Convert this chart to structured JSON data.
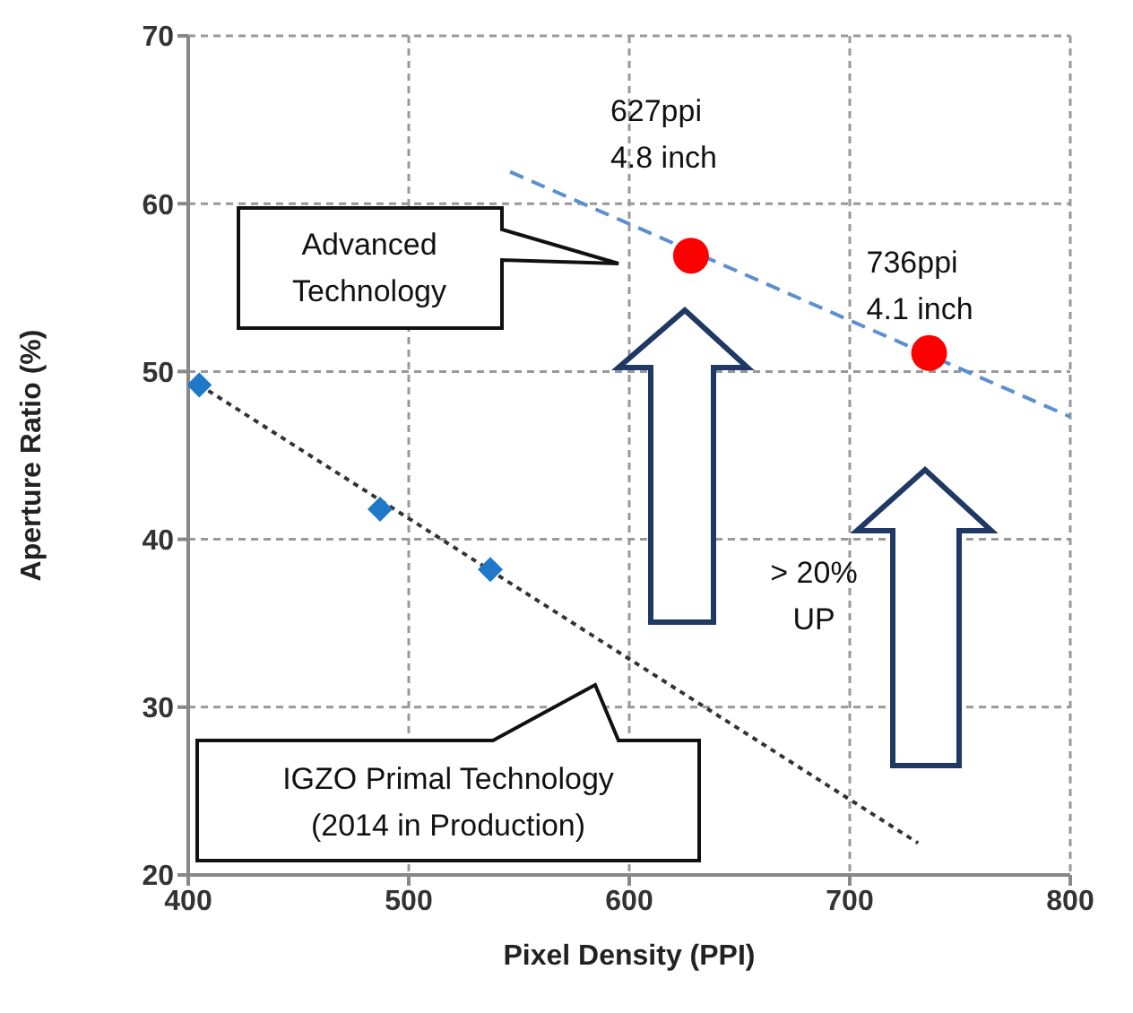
{
  "chart_data": {
    "type": "scatter",
    "xlabel": "Pixel Density (PPI)",
    "ylabel": "Aperture Ratio (%)",
    "xlim": [
      400,
      800
    ],
    "xticks": [
      400,
      500,
      600,
      700,
      800
    ],
    "ylim": [
      20,
      70
    ],
    "yticks": [
      20,
      30,
      40,
      50,
      60,
      70
    ],
    "grid": true,
    "series": [
      {
        "marker": "diamond",
        "color": "#1f78c8",
        "x": [
          405,
          487,
          537
        ],
        "values": [
          49.2,
          41.8,
          38.2
        ]
      },
      {
        "marker": "circle",
        "color": "#ff0000",
        "x": [
          628,
          736
        ],
        "values": [
          56.9,
          51.1
        ]
      },
      {
        "type": "line",
        "line_style": "dotted",
        "color": "#333333",
        "x": [
          405,
          731
        ],
        "values": [
          49.2,
          21.9
        ]
      },
      {
        "type": "line",
        "line_style": "dashed",
        "color": "#5b8fd0",
        "x": [
          546,
          800
        ],
        "values": [
          61.9,
          47.3
        ]
      }
    ],
    "annotations": [
      {
        "text": "627ppi\n4.8 inch",
        "x": 628,
        "y": 56.9
      },
      {
        "text": "736ppi\n4.1 inch",
        "x": 736,
        "y": 51.1
      },
      "Advanced\nTechnology",
      "IGZO Primal Technology\n(2014 in Production)",
      "> 20%\nUP"
    ]
  }
}
